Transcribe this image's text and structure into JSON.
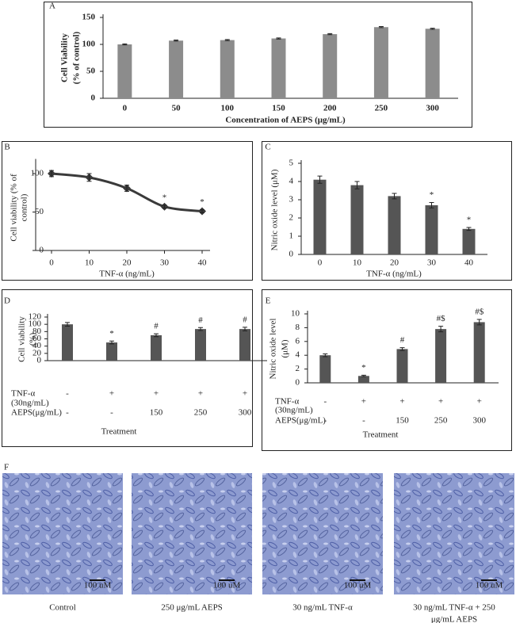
{
  "chart_data": [
    {
      "type": "bar",
      "panel": "A",
      "ylabel": [
        "Cell Viability",
        "(% of control)"
      ],
      "xlabel": "Concentration of AEPS (μg/mL)",
      "categories": [
        "0",
        "50",
        "100",
        "150",
        "200",
        "250",
        "300"
      ],
      "values": [
        100,
        107,
        108,
        111,
        119,
        132,
        129
      ],
      "errors": [
        1,
        1,
        1,
        1,
        1,
        1,
        1
      ],
      "color": "#8c8c8c",
      "ylim": [
        0,
        150
      ],
      "yticks": [
        0,
        50,
        100,
        150
      ]
    },
    {
      "type": "line",
      "panel": "B",
      "ylabel": [
        "Cell viability (% of",
        "control)"
      ],
      "xlabel": "TNF-α (ng/mL)",
      "x": [
        0,
        10,
        20,
        30,
        40
      ],
      "values": [
        100,
        95,
        81,
        57,
        51
      ],
      "errors": [
        4,
        5,
        4,
        2,
        2
      ],
      "markers": [
        null,
        null,
        null,
        "*",
        "*"
      ],
      "color": "#3a3a3a",
      "xlim": [
        0,
        40
      ],
      "xticks": [
        0,
        10,
        20,
        30,
        40
      ],
      "ylim": [
        0,
        115
      ],
      "yticks": [
        0,
        50,
        100
      ]
    },
    {
      "type": "bar",
      "panel": "C",
      "ylabel": [
        "Nitric oxide level (μM)"
      ],
      "xlabel": "TNF-α (ng/mL)",
      "categories": [
        "0",
        "10",
        "20",
        "30",
        "40"
      ],
      "values": [
        4.1,
        3.8,
        3.2,
        2.7,
        1.4
      ],
      "errors": [
        0.2,
        0.2,
        0.15,
        0.15,
        0.08
      ],
      "markers": [
        null,
        null,
        null,
        "*",
        "*"
      ],
      "color": "#555555",
      "ylim": [
        0,
        5
      ],
      "yticks": [
        0,
        1,
        2,
        3,
        4,
        5
      ]
    },
    {
      "type": "bar",
      "panel": "D",
      "ylabel": [
        "Cell viability",
        "(%)"
      ],
      "xlabel": "Treatment",
      "values": [
        100,
        50,
        70,
        87,
        87
      ],
      "errors": [
        5,
        4,
        4,
        4,
        5
      ],
      "markers": [
        null,
        "*",
        "#",
        "#",
        "#"
      ],
      "treatment_rows": [
        {
          "label": [
            "TNF-α",
            "(30ng/mL)"
          ],
          "values": [
            "-",
            "+",
            "+",
            "+",
            "+"
          ]
        },
        {
          "label": [
            "AEPS(μg/mL)"
          ],
          "values": [
            "-",
            "-",
            "150",
            "250",
            "300"
          ]
        }
      ],
      "color": "#555555",
      "ylim": [
        0,
        120
      ],
      "yticks": [
        0,
        20,
        40,
        60,
        80,
        100,
        120
      ]
    },
    {
      "type": "bar",
      "panel": "E",
      "ylabel": [
        "Nitric oxide level",
        "(μM)"
      ],
      "xlabel": "Treatment",
      "values": [
        4,
        1,
        4.9,
        7.8,
        8.8
      ],
      "errors": [
        0.2,
        0.1,
        0.2,
        0.4,
        0.4
      ],
      "markers": [
        null,
        "*",
        "#",
        "#$",
        "#$"
      ],
      "treatment_rows": [
        {
          "label": [
            "TNF-α",
            "(30ng/mL)"
          ],
          "values": [
            "-",
            "+",
            "+",
            "+",
            "+"
          ]
        },
        {
          "label": [
            "AEPS(μg/mL)"
          ],
          "values": [
            "-",
            "-",
            "150",
            "250",
            "300"
          ]
        }
      ],
      "color": "#555555",
      "ylim": [
        0,
        10
      ],
      "yticks": [
        0,
        2,
        4,
        6,
        8,
        10
      ]
    }
  ],
  "panel_f": {
    "panel": "F",
    "images": [
      {
        "caption": [
          "Control"
        ],
        "scale_bar": "100 uM"
      },
      {
        "caption": [
          "250 μg/mL AEPS"
        ],
        "scale_bar": "100 uM"
      },
      {
        "caption": [
          "30 ng/mL TNF-α"
        ],
        "scale_bar": "100 uM"
      },
      {
        "caption": [
          "30 ng/mL TNF-α + 250",
          "μg/mL AEPS"
        ],
        "scale_bar": "100 uM"
      }
    ]
  }
}
